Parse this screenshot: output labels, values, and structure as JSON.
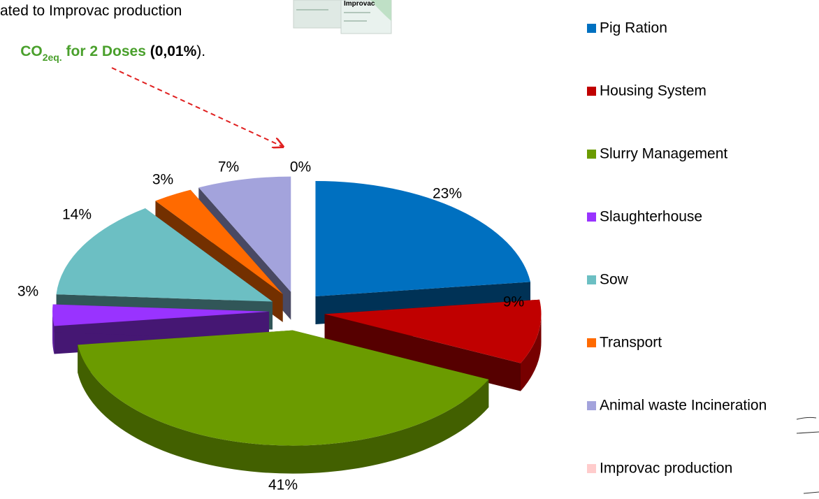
{
  "chart_data": {
    "type": "pie",
    "categories": [
      "Pig Ration",
      "Housing System",
      "Slurry Management",
      "Slaughterhouse",
      "Sow",
      "Transport",
      "Animal waste Incineration",
      "Improvac production"
    ],
    "values": [
      23,
      9,
      41,
      3,
      14,
      3,
      7,
      0
    ],
    "value_labels": [
      "23%",
      "9%",
      "41%",
      "3%",
      "14%",
      "3%",
      "7%",
      "0%"
    ],
    "colors": [
      "#0070c0",
      "#c00000",
      "#6b9b00",
      "#9933ff",
      "#6cbfc3",
      "#ff6a00",
      "#a3a3dc",
      "#ffcccc"
    ],
    "legend": "right",
    "annotations": [
      {
        "text": "ated to Improvac production"
      },
      {
        "parts": [
          "CO",
          "2eq.",
          " for 2 Doses ",
          "(0,01%",
          ")."
        ]
      }
    ],
    "product_label": "Improvac"
  }
}
